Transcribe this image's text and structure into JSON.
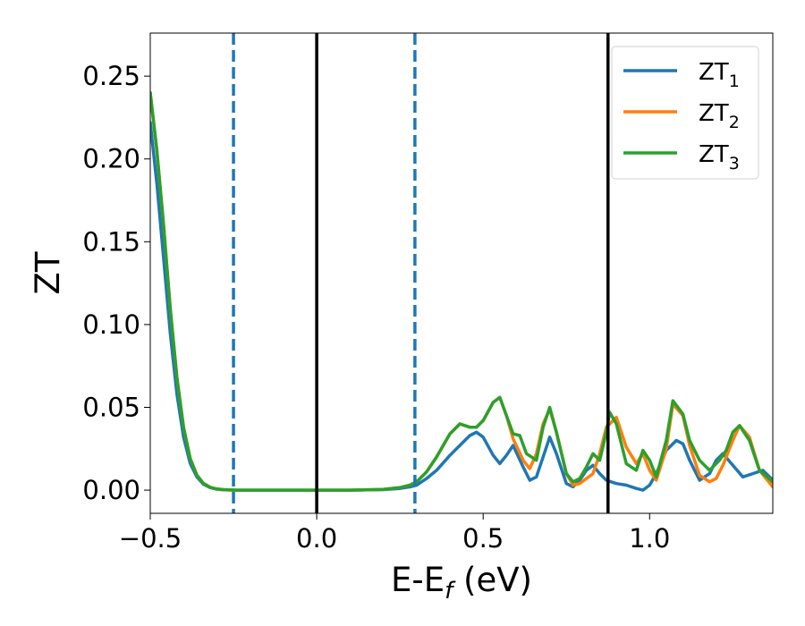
{
  "chart_data": {
    "type": "line",
    "xlabel": "E-E",
    "xlabel_subscript": "f",
    "xlabel_suffix": " (eV)",
    "ylabel": "ZT",
    "xlim": [
      -0.5,
      1.37
    ],
    "ylim": [
      -0.014,
      0.276
    ],
    "x_ticks": [
      -0.5,
      0.0,
      0.5,
      1.0
    ],
    "x_tick_labels": [
      "−0.5",
      "0.0",
      "0.5",
      "1.0"
    ],
    "y_ticks": [
      0.0,
      0.05,
      0.1,
      0.15,
      0.2,
      0.25
    ],
    "y_tick_labels": [
      "0.00",
      "0.05",
      "0.10",
      "0.15",
      "0.20",
      "0.25"
    ],
    "grid": false,
    "legend_position": "top-right",
    "vlines": [
      {
        "x": -0.25,
        "style": "dashed",
        "color": "#1f77b4"
      },
      {
        "x": 0.0,
        "style": "solid",
        "color": "#000000"
      },
      {
        "x": 0.295,
        "style": "dashed",
        "color": "#1f77b4"
      },
      {
        "x": 0.875,
        "style": "solid",
        "color": "#000000"
      }
    ],
    "series": [
      {
        "name": "ZT",
        "subscript": "1",
        "color": "#1f77b4",
        "x": [
          -0.5,
          -0.48,
          -0.46,
          -0.44,
          -0.42,
          -0.4,
          -0.38,
          -0.36,
          -0.34,
          -0.32,
          -0.3,
          -0.28,
          -0.26,
          -0.24,
          -0.22,
          -0.2,
          -0.15,
          -0.1,
          0.0,
          0.1,
          0.2,
          0.25,
          0.28,
          0.3,
          0.33,
          0.36,
          0.4,
          0.43,
          0.46,
          0.48,
          0.5,
          0.53,
          0.55,
          0.57,
          0.59,
          0.62,
          0.64,
          0.66,
          0.68,
          0.7,
          0.72,
          0.75,
          0.77,
          0.79,
          0.81,
          0.83,
          0.85,
          0.87,
          0.9,
          0.93,
          0.96,
          0.98,
          1.0,
          1.02,
          1.05,
          1.08,
          1.1,
          1.12,
          1.15,
          1.18,
          1.2,
          1.22,
          1.25,
          1.28,
          1.31,
          1.34,
          1.37
        ],
        "y": [
          0.222,
          0.185,
          0.14,
          0.095,
          0.058,
          0.032,
          0.016,
          0.008,
          0.0035,
          0.0015,
          0.0006,
          0.0002,
          0.0001,
          0.0,
          0.0,
          0.0,
          0.0,
          0.0,
          0.0,
          0.0,
          0.0003,
          0.001,
          0.002,
          0.003,
          0.007,
          0.012,
          0.021,
          0.027,
          0.033,
          0.035,
          0.032,
          0.021,
          0.016,
          0.021,
          0.027,
          0.014,
          0.006,
          0.008,
          0.02,
          0.032,
          0.022,
          0.004,
          0.002,
          0.006,
          0.012,
          0.015,
          0.01,
          0.006,
          0.004,
          0.003,
          0.001,
          0.0,
          0.003,
          0.01,
          0.024,
          0.03,
          0.028,
          0.018,
          0.006,
          0.01,
          0.018,
          0.022,
          0.015,
          0.008,
          0.01,
          0.012,
          0.006
        ]
      },
      {
        "name": "ZT",
        "subscript": "2",
        "color": "#ff7f0e",
        "x": [
          -0.5,
          -0.48,
          -0.46,
          -0.44,
          -0.42,
          -0.4,
          -0.38,
          -0.36,
          -0.34,
          -0.32,
          -0.3,
          -0.28,
          -0.26,
          -0.24,
          -0.22,
          -0.2,
          -0.15,
          -0.1,
          0.0,
          0.1,
          0.2,
          0.25,
          0.28,
          0.3,
          0.33,
          0.36,
          0.4,
          0.43,
          0.46,
          0.48,
          0.5,
          0.53,
          0.55,
          0.57,
          0.59,
          0.62,
          0.64,
          0.66,
          0.68,
          0.7,
          0.72,
          0.75,
          0.77,
          0.79,
          0.81,
          0.83,
          0.85,
          0.87,
          0.9,
          0.93,
          0.96,
          0.98,
          1.0,
          1.02,
          1.05,
          1.07,
          1.1,
          1.12,
          1.15,
          1.18,
          1.2,
          1.22,
          1.25,
          1.27,
          1.3,
          1.33,
          1.37
        ],
        "y": [
          0.24,
          0.205,
          0.16,
          0.11,
          0.068,
          0.038,
          0.019,
          0.009,
          0.004,
          0.0017,
          0.0007,
          0.0003,
          0.0001,
          0.0,
          0.0,
          0.0,
          0.0,
          0.0,
          0.0,
          0.0,
          0.0004,
          0.0015,
          0.003,
          0.005,
          0.011,
          0.02,
          0.034,
          0.04,
          0.038,
          0.038,
          0.042,
          0.053,
          0.056,
          0.045,
          0.031,
          0.018,
          0.013,
          0.022,
          0.04,
          0.049,
          0.035,
          0.01,
          0.003,
          0.004,
          0.007,
          0.01,
          0.022,
          0.038,
          0.044,
          0.026,
          0.016,
          0.022,
          0.012,
          0.006,
          0.025,
          0.052,
          0.045,
          0.027,
          0.009,
          0.005,
          0.007,
          0.015,
          0.03,
          0.039,
          0.032,
          0.012,
          0.002
        ]
      },
      {
        "name": "ZT",
        "subscript": "3",
        "color": "#2ca02c",
        "x": [
          -0.5,
          -0.48,
          -0.46,
          -0.44,
          -0.42,
          -0.4,
          -0.38,
          -0.36,
          -0.34,
          -0.32,
          -0.3,
          -0.28,
          -0.26,
          -0.24,
          -0.22,
          -0.2,
          -0.15,
          -0.1,
          0.0,
          0.1,
          0.2,
          0.25,
          0.28,
          0.3,
          0.33,
          0.36,
          0.4,
          0.43,
          0.46,
          0.48,
          0.5,
          0.53,
          0.55,
          0.57,
          0.59,
          0.61,
          0.63,
          0.66,
          0.68,
          0.7,
          0.72,
          0.75,
          0.77,
          0.79,
          0.81,
          0.83,
          0.85,
          0.87,
          0.88,
          0.9,
          0.93,
          0.96,
          0.98,
          1.0,
          1.02,
          1.05,
          1.07,
          1.1,
          1.12,
          1.15,
          1.18,
          1.21,
          1.23,
          1.25,
          1.27,
          1.3,
          1.33,
          1.37
        ],
        "y": [
          0.24,
          0.205,
          0.16,
          0.11,
          0.068,
          0.038,
          0.019,
          0.009,
          0.004,
          0.0017,
          0.0007,
          0.0003,
          0.0001,
          0.0,
          0.0,
          0.0,
          0.0,
          0.0,
          0.0,
          0.0,
          0.0004,
          0.0015,
          0.003,
          0.005,
          0.011,
          0.02,
          0.034,
          0.04,
          0.038,
          0.038,
          0.042,
          0.053,
          0.056,
          0.045,
          0.034,
          0.033,
          0.022,
          0.018,
          0.038,
          0.05,
          0.035,
          0.01,
          0.005,
          0.007,
          0.014,
          0.022,
          0.018,
          0.035,
          0.047,
          0.04,
          0.016,
          0.012,
          0.024,
          0.018,
          0.008,
          0.03,
          0.054,
          0.046,
          0.03,
          0.018,
          0.012,
          0.018,
          0.024,
          0.035,
          0.039,
          0.03,
          0.012,
          0.005
        ]
      }
    ]
  }
}
